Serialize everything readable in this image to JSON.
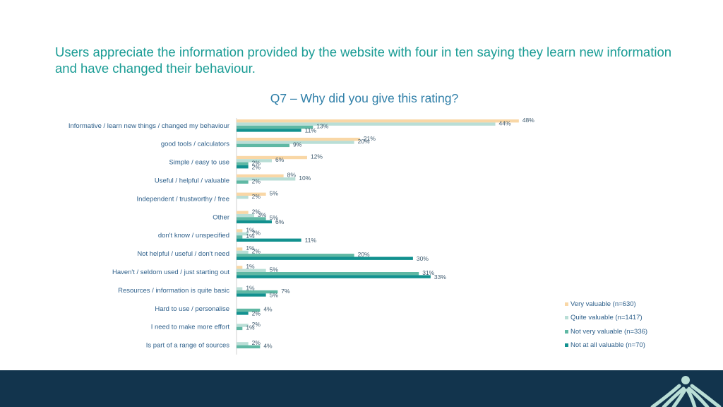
{
  "headline": "Users appreciate the information provided by the website with four in ten saying they learn new information and have changed their behaviour.",
  "logo_icon": "arch-logo-icon",
  "colors": {
    "very_valuable": "#f9d7a6",
    "quite_valuable": "#b9ded6",
    "not_very_valuable": "#5fb8a4",
    "not_at_all_valuable": "#12918f",
    "footer": "#12344d",
    "logo": "#b9ded6"
  },
  "chart_data": {
    "type": "bar",
    "orientation": "horizontal",
    "title": "Q7 – Why did you give this rating?",
    "categories": [
      "Informative / learn new things / changed my behaviour",
      "good tools / calculators",
      "Simple / easy to use",
      "Useful / helpful / valuable",
      "Independent / trustworthy / free",
      "Other",
      "don't know / unspecified",
      "Not helpful / useful / don't need",
      "Haven't / seldom used / just starting out",
      "Resources / information is quite basic",
      "Hard to use / personalise",
      "I need to make more effort",
      "Is part of a range of sources"
    ],
    "series": [
      {
        "name": "Very valuable (n=630)",
        "values": [
          48,
          21,
          12,
          8,
          5,
          2,
          1,
          1,
          1,
          null,
          null,
          null,
          null
        ]
      },
      {
        "name": "Quite valuable (n=1417)",
        "values": [
          44,
          20,
          6,
          10,
          2,
          3,
          2,
          2,
          5,
          1,
          null,
          2,
          2
        ]
      },
      {
        "name": "Not very valuable (n=336)",
        "values": [
          13,
          9,
          2,
          2,
          null,
          5,
          1,
          20,
          31,
          7,
          4,
          1,
          4
        ]
      },
      {
        "name": "Not at all valuable (n=70)",
        "values": [
          11,
          null,
          2,
          null,
          null,
          6,
          11,
          30,
          33,
          5,
          2,
          null,
          null
        ]
      }
    ],
    "legend_position": "right",
    "grid": false
  }
}
